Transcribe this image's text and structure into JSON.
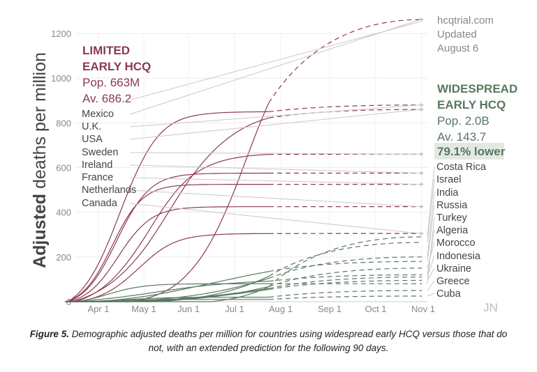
{
  "chart_data": {
    "type": "line",
    "title": "",
    "ylabel": "Adjusted deaths per million",
    "ylabel_bold": "Adjusted",
    "ylabel_rest": "deaths per million",
    "ylim": [
      0,
      1300
    ],
    "yticks": [
      0,
      200,
      400,
      600,
      800,
      1000,
      1200
    ],
    "x_tick_labels": [
      "Apr 1",
      "May 1",
      "Jun 1",
      "Jul 1",
      "Aug 1",
      "Sep 1",
      "Oct 1",
      "Nov 1"
    ],
    "x_range_days": [
      0,
      225
    ],
    "observed_end_day": 136,
    "watermark": "JN",
    "source": [
      "hcqtrial.com",
      "Updated",
      "August 6"
    ],
    "colors": {
      "limited": "#8b3a4f",
      "widespread": "#587860",
      "arrow": "#c8c8c8",
      "text": "#444444"
    },
    "limited_group": {
      "heading": [
        "LIMITED",
        "EARLY HCQ"
      ],
      "population": "Pop. 663M",
      "average": "Av. 686.2",
      "countries": [
        "Mexico",
        "U.K.",
        "USA",
        "Sweden",
        "Ireland",
        "France",
        "Netherlands",
        "Canada"
      ]
    },
    "widespread_group": {
      "heading": [
        "WIDESPREAD",
        "EARLY HCQ"
      ],
      "population": "Pop. 2.0B",
      "average": "Av. 143.7",
      "comparison": "79.1% lower",
      "countries": [
        "Costa Rica",
        "Israel",
        "India",
        "Russia",
        "Turkey",
        "Algeria",
        "Morocco",
        "Indonesia",
        "Ukraine",
        "Greece",
        "Cuba"
      ]
    },
    "series": [
      {
        "name": "Mexico",
        "group": "limited",
        "onset": 42,
        "half": 120,
        "k": 18,
        "max": 1262,
        "end_value": 1262
      },
      {
        "name": "U.K.",
        "group": "limited",
        "onset": 2,
        "half": 36,
        "k": 13,
        "max": 850,
        "end_value": 880
      },
      {
        "name": "USA",
        "group": "limited",
        "onset": 5,
        "half": 70,
        "k": 22,
        "max": 865,
        "end_value": 860
      },
      {
        "name": "Sweden",
        "group": "limited",
        "onset": 7,
        "half": 55,
        "k": 17,
        "max": 665,
        "end_value": 660
      },
      {
        "name": "Ireland",
        "group": "limited",
        "onset": 2,
        "half": 34,
        "k": 11,
        "max": 575,
        "end_value": 575
      },
      {
        "name": "France",
        "group": "limited",
        "onset": 1,
        "half": 31,
        "k": 10,
        "max": 525,
        "end_value": 525
      },
      {
        "name": "Netherlands",
        "group": "limited",
        "onset": 3,
        "half": 35,
        "k": 11,
        "max": 425,
        "end_value": 425
      },
      {
        "name": "Canada",
        "group": "limited",
        "onset": 8,
        "half": 48,
        "k": 13,
        "max": 305,
        "end_value": 305
      },
      {
        "name": "Costa Rica",
        "group": "widespread",
        "onset": 98,
        "half": 160,
        "k": 20,
        "max": 340,
        "end_value": 290
      },
      {
        "name": "Israel",
        "group": "widespread",
        "onset": 62,
        "half": 145,
        "k": 25,
        "max": 290,
        "end_value": 265
      },
      {
        "name": "India",
        "group": "widespread",
        "onset": 30,
        "half": 140,
        "k": 30,
        "max": 230,
        "end_value": 200
      },
      {
        "name": "Russia",
        "group": "widespread",
        "onset": 20,
        "half": 100,
        "k": 35,
        "max": 190,
        "end_value": 180
      },
      {
        "name": "Turkey",
        "group": "widespread",
        "onset": 8,
        "half": 28,
        "k": 12,
        "max": 80,
        "end_value": 80
      },
      {
        "name": "Algeria",
        "group": "widespread",
        "onset": 5,
        "half": 60,
        "k": 30,
        "max": 100,
        "end_value": 120
      },
      {
        "name": "Morocco",
        "group": "widespread",
        "onset": 40,
        "half": 140,
        "k": 25,
        "max": 150,
        "end_value": 150
      },
      {
        "name": "Indonesia",
        "group": "widespread",
        "onset": 25,
        "half": 130,
        "k": 30,
        "max": 110,
        "end_value": 110
      },
      {
        "name": "Ukraine",
        "group": "widespread",
        "onset": 25,
        "half": 135,
        "k": 30,
        "max": 110,
        "end_value": 95
      },
      {
        "name": "Greece",
        "group": "widespread",
        "onset": 8,
        "half": 40,
        "k": 15,
        "max": 20,
        "end_value": 50
      },
      {
        "name": "Cuba",
        "group": "widespread",
        "onset": 8,
        "half": 30,
        "k": 12,
        "max": 10,
        "end_value": 25
      }
    ]
  },
  "caption": {
    "label": "Figure 5.",
    "text": "Demographic adjusted deaths per million for countries using widespread early HCQ versus those that do not, with an extended prediction for the following 90 days."
  }
}
